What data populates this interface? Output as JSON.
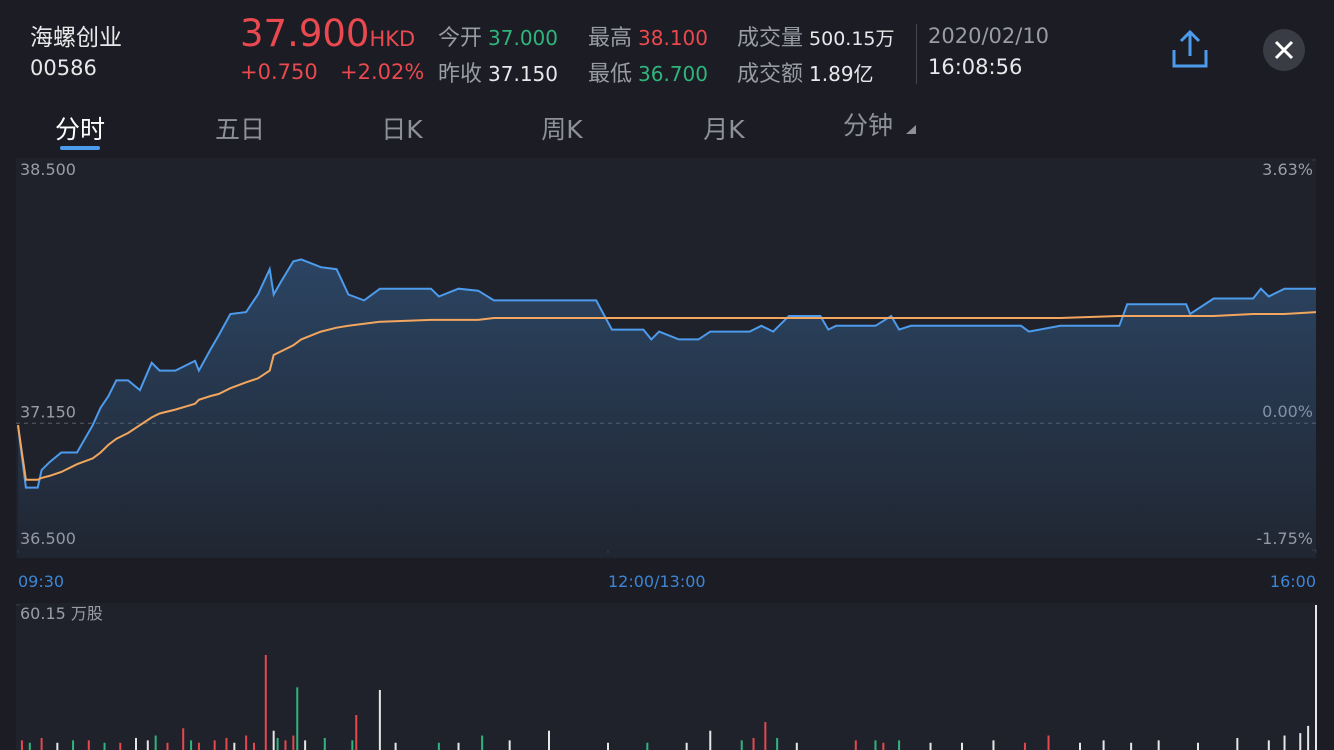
{
  "header": {
    "name": "海螺创业",
    "code": "00586",
    "price": "37.900",
    "currency": "HKD",
    "change": "+0.750",
    "change_pct": "+2.02%",
    "stats": [
      {
        "label": "今开",
        "value": "37.000"
      },
      {
        "label": "昨收",
        "value": "37.150"
      },
      {
        "label": "最高",
        "value": "38.100"
      },
      {
        "label": "最低",
        "value": "36.700"
      },
      {
        "label": "成交量",
        "value": "500.15万"
      },
      {
        "label": "成交额",
        "value": "1.89亿"
      }
    ],
    "date": "2020/02/10",
    "time": "16:08:56"
  },
  "tabs": [
    "分时",
    "五日",
    "日K",
    "周K",
    "月K",
    "分钟"
  ],
  "chart_data": [
    {
      "type": "line",
      "x": [
        0,
        1,
        2,
        5,
        6,
        8,
        11,
        15,
        19,
        21,
        23,
        25,
        28,
        31,
        34,
        36,
        40,
        45,
        46,
        49,
        51,
        54,
        58,
        61,
        64,
        65,
        67,
        70,
        72,
        77,
        81,
        84,
        88,
        92,
        105,
        107,
        112,
        117,
        121,
        147,
        151,
        159,
        161,
        163,
        168,
        173,
        176,
        186,
        189,
        192,
        196,
        204,
        206,
        208,
        218,
        222,
        224,
        227,
        255,
        257,
        265,
        280,
        282,
        297,
        298,
        304,
        314,
        316,
        318,
        322,
        330
      ],
      "xlim": [
        0,
        330
      ],
      "xticks": [
        {
          "value": 0,
          "label": "09:30"
        },
        {
          "value": 150,
          "label": "12:00/13:00"
        },
        {
          "value": 330,
          "label": "16:00"
        }
      ],
      "ylim": [
        36.5,
        38.5
      ],
      "yticks": [
        {
          "value": 38.5,
          "label": "38.500"
        },
        {
          "value": 37.15,
          "label": "37.150"
        },
        {
          "value": 36.5,
          "label": "36.500"
        }
      ],
      "y2lim": [
        -1.75,
        3.63
      ],
      "y2ticks": [
        {
          "value": 3.63,
          "label": "3.63%"
        },
        {
          "value": 0,
          "label": "0.00%"
        },
        {
          "value": -1.75,
          "label": "-1.75%"
        }
      ],
      "series": [
        {
          "color": "#4d9bec",
          "fill_color": "#3a6ea5",
          "values": [
            37.14,
            36.98,
            36.82,
            36.82,
            36.91,
            36.95,
            37.0,
            37.0,
            37.14,
            37.23,
            37.29,
            37.37,
            37.37,
            37.32,
            37.46,
            37.42,
            37.42,
            37.47,
            37.42,
            37.53,
            37.6,
            37.71,
            37.72,
            37.81,
            37.94,
            37.81,
            37.88,
            37.98,
            37.99,
            37.95,
            37.94,
            37.81,
            37.78,
            37.84,
            37.84,
            37.8,
            37.84,
            37.83,
            37.78,
            37.78,
            37.63,
            37.63,
            37.58,
            37.62,
            37.58,
            37.58,
            37.62,
            37.62,
            37.65,
            37.62,
            37.7,
            37.7,
            37.63,
            37.65,
            37.65,
            37.7,
            37.63,
            37.65,
            37.65,
            37.62,
            37.65,
            37.65,
            37.76,
            37.76,
            37.71,
            37.79,
            37.79,
            37.84,
            37.8,
            37.84,
            37.84
          ]
        },
        {
          "color": "#f2a65e",
          "values": [
            37.14,
            37.0,
            36.86,
            36.86,
            36.87,
            36.88,
            36.9,
            36.94,
            36.97,
            37.0,
            37.04,
            37.07,
            37.1,
            37.14,
            37.18,
            37.2,
            37.22,
            37.25,
            37.27,
            37.29,
            37.3,
            37.33,
            37.36,
            37.38,
            37.42,
            37.5,
            37.52,
            37.55,
            37.58,
            37.62,
            37.64,
            37.65,
            37.66,
            37.67,
            37.68,
            37.68,
            37.68,
            37.68,
            37.69,
            37.69,
            37.69,
            37.69,
            37.69,
            37.69,
            37.69,
            37.69,
            37.69,
            37.69,
            37.69,
            37.69,
            37.69,
            37.69,
            37.69,
            37.69,
            37.69,
            37.69,
            37.69,
            37.69,
            37.69,
            37.69,
            37.69,
            37.7,
            37.7,
            37.7,
            37.7,
            37.7,
            37.71,
            37.71,
            37.71,
            37.71,
            37.72
          ]
        }
      ]
    },
    {
      "type": "bar",
      "x": [
        1,
        3,
        6,
        10,
        14,
        18,
        22,
        26,
        30,
        33,
        35,
        38,
        42,
        44,
        46,
        50,
        53,
        55,
        58,
        60,
        63,
        65,
        66,
        68,
        70,
        71,
        73,
        78,
        85,
        86,
        92,
        96,
        107,
        112,
        118,
        125,
        135,
        150,
        160,
        170,
        176,
        184,
        187,
        190,
        193,
        198,
        213,
        218,
        220,
        224,
        232,
        240,
        248,
        256,
        262,
        270,
        276,
        283,
        290,
        300,
        310,
        318,
        322,
        326,
        328,
        330
      ],
      "values": [
        4,
        3,
        5,
        3,
        4,
        4,
        3,
        3,
        5,
        4,
        6,
        3,
        9,
        4,
        3,
        4,
        5,
        3,
        6,
        3,
        39.4,
        8,
        5,
        4,
        6,
        26,
        4,
        5,
        4,
        14.5,
        24.9,
        3,
        3,
        3,
        6,
        4,
        8,
        3,
        3,
        3,
        8,
        4,
        5,
        11.6,
        5,
        3,
        4,
        4,
        3,
        4,
        3,
        3,
        4,
        3,
        6,
        3,
        4,
        3,
        4,
        3,
        5,
        4,
        6,
        7,
        10,
        60.15
      ],
      "colors": [
        "#e5484d",
        "#2fb57c",
        "#e5484d",
        "#e6e6e6",
        "#2fb57c",
        "#e5484d",
        "#2fb57c",
        "#e5484d",
        "#e6e6e6",
        "#e6e6e6",
        "#2fb57c",
        "#e5484d",
        "#e5484d",
        "#2fb57c",
        "#e5484d",
        "#e5484d",
        "#e5484d",
        "#e6e6e6",
        "#e5484d",
        "#e5484d",
        "#e5484d",
        "#e6e6e6",
        "#2fb57c",
        "#e5484d",
        "#e5484d",
        "#2fb57c",
        "#e6e6e6",
        "#2fb57c",
        "#2fb57c",
        "#e5484d",
        "#e6e6e6",
        "#e6e6e6",
        "#2fb57c",
        "#e6e6e6",
        "#2fb57c",
        "#e6e6e6",
        "#e6e6e6",
        "#e6e6e6",
        "#2fb57c",
        "#e6e6e6",
        "#e6e6e6",
        "#2fb57c",
        "#e5484d",
        "#e5484d",
        "#2fb57c",
        "#e6e6e6",
        "#e5484d",
        "#2fb57c",
        "#e5484d",
        "#2fb57c",
        "#e6e6e6",
        "#e6e6e6",
        "#e6e6e6",
        "#e5484d",
        "#e5484d",
        "#e6e6e6",
        "#e6e6e6",
        "#e6e6e6",
        "#e6e6e6",
        "#e6e6e6",
        "#e6e6e6",
        "#e6e6e6",
        "#e6e6e6",
        "#e6e6e6",
        "#e6e6e6",
        "#e6e6e6"
      ],
      "xlim": [
        0,
        330
      ],
      "ylim": [
        0,
        60.15
      ],
      "yticks": [
        {
          "value": 60.15,
          "label": "60.15 万股"
        }
      ]
    }
  ]
}
